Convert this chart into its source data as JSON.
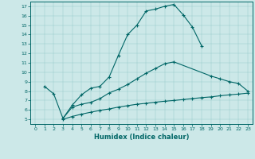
{
  "xlabel": "Humidex (Indice chaleur)",
  "background_color": "#cce8e8",
  "line_color": "#006666",
  "xlim": [
    -0.5,
    23.5
  ],
  "ylim": [
    4.5,
    17.5
  ],
  "line1_x": [
    1,
    2,
    3,
    4,
    5,
    6,
    7,
    8,
    9,
    10,
    11,
    12,
    13,
    14,
    15,
    16,
    17,
    18
  ],
  "line1_y": [
    8.5,
    7.7,
    5.1,
    6.5,
    7.6,
    8.3,
    8.5,
    9.5,
    11.8,
    14.0,
    15.0,
    16.5,
    16.7,
    17.0,
    17.2,
    16.1,
    14.8,
    12.8
  ],
  "line2_x": [
    3,
    4,
    5,
    6,
    7,
    8,
    9,
    10,
    11,
    12,
    13,
    14,
    15,
    19,
    20,
    21,
    22,
    23
  ],
  "line2_y": [
    5.1,
    6.3,
    6.6,
    6.8,
    7.2,
    7.8,
    8.2,
    8.7,
    9.3,
    9.9,
    10.4,
    10.9,
    11.1,
    9.6,
    9.3,
    9.0,
    8.8,
    8.0
  ],
  "line3_x": [
    3,
    4,
    5,
    6,
    7,
    8,
    9,
    10,
    11,
    12,
    13,
    14,
    15,
    16,
    17,
    18,
    19,
    20,
    21,
    22,
    23
  ],
  "line3_y": [
    5.0,
    5.3,
    5.55,
    5.75,
    5.95,
    6.1,
    6.3,
    6.45,
    6.6,
    6.7,
    6.82,
    6.92,
    7.0,
    7.1,
    7.2,
    7.3,
    7.38,
    7.5,
    7.6,
    7.68,
    7.78
  ]
}
